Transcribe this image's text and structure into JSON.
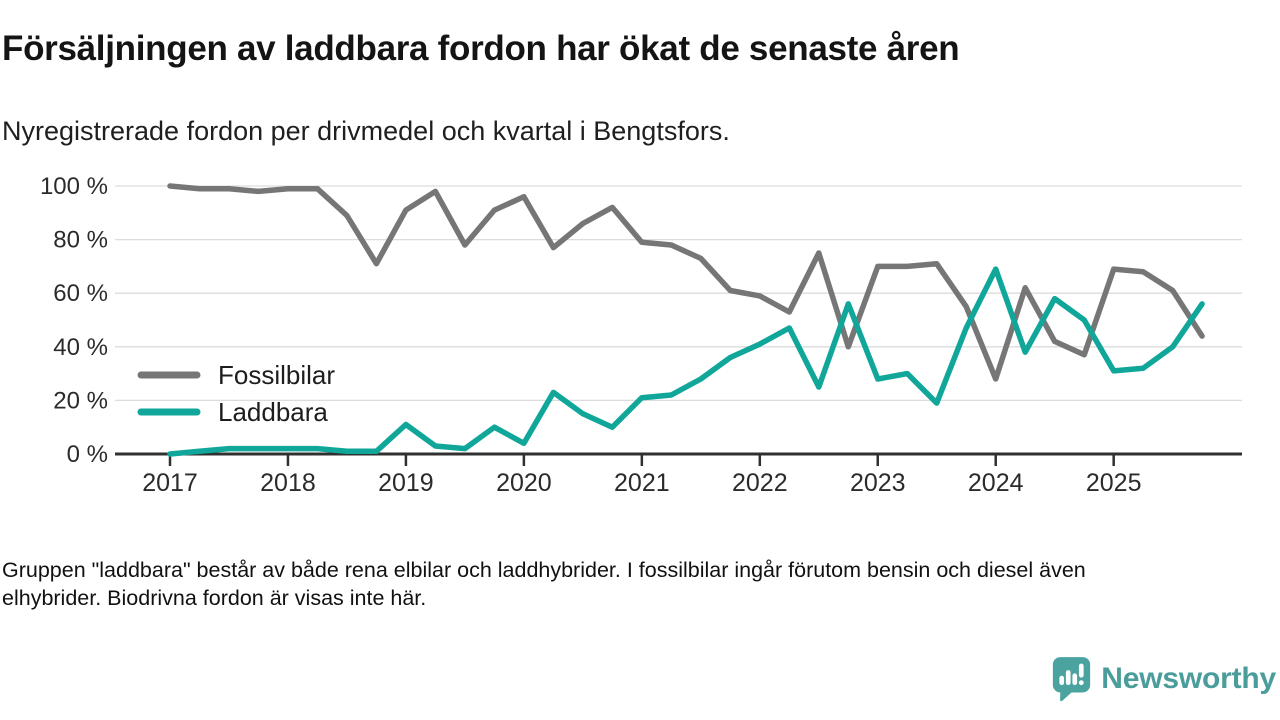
{
  "header": {
    "title": "Försäljningen av laddbara fordon har ökat de senaste åren",
    "subtitle": "Nyregistrerade fordon per drivmedel och kvartal i Bengtsfors."
  },
  "chart_data": {
    "type": "line",
    "title": "Nyregistrerade fordon per drivmedel och kvartal i Bengtsfors",
    "xlabel": "",
    "ylabel": "",
    "ylim": [
      0,
      100
    ],
    "grid": "horizontal",
    "legend_position": "inside-left",
    "x_tick_labels": [
      "2017",
      "2018",
      "2019",
      "2020",
      "2021",
      "2022",
      "2023",
      "2024",
      "2025"
    ],
    "y_tick_values": [
      0,
      20,
      40,
      60,
      80,
      100
    ],
    "y_tick_labels": [
      "0 %",
      "20 %",
      "40 %",
      "60 %",
      "80 %",
      "100 %"
    ],
    "categories": [
      "2017 Q1",
      "2017 Q2",
      "2017 Q3",
      "2017 Q4",
      "2018 Q1",
      "2018 Q2",
      "2018 Q3",
      "2018 Q4",
      "2019 Q1",
      "2019 Q2",
      "2019 Q3",
      "2019 Q4",
      "2020 Q1",
      "2020 Q2",
      "2020 Q3",
      "2020 Q4",
      "2021 Q1",
      "2021 Q2",
      "2021 Q3",
      "2021 Q4",
      "2022 Q1",
      "2022 Q2",
      "2022 Q3",
      "2022 Q4",
      "2023 Q1",
      "2023 Q2",
      "2023 Q3",
      "2023 Q4",
      "2024 Q1",
      "2024 Q2",
      "2024 Q3",
      "2024 Q4",
      "2025 Q1",
      "2025 Q2",
      "2025 Q3",
      "2025 Q4"
    ],
    "series": [
      {
        "name": "Fossilbilar",
        "color": "#767676",
        "values": [
          100,
          99,
          99,
          98,
          99,
          99,
          89,
          71,
          91,
          98,
          78,
          91,
          96,
          77,
          86,
          92,
          79,
          78,
          73,
          61,
          59,
          53,
          75,
          40,
          70,
          70,
          71,
          55,
          28,
          62,
          42,
          37,
          69,
          68,
          61,
          44
        ]
      },
      {
        "name": "Laddbara",
        "color": "#10a79a",
        "values": [
          0,
          1,
          2,
          2,
          2,
          2,
          1,
          1,
          11,
          3,
          2,
          10,
          4,
          23,
          15,
          10,
          21,
          22,
          28,
          36,
          41,
          47,
          25,
          56,
          28,
          30,
          19,
          47,
          69,
          38,
          58,
          50,
          31,
          32,
          40,
          56
        ]
      }
    ]
  },
  "footer": {
    "lines": [
      "Gruppen \"laddbara\" består av både rena elbilar och laddhybrider. I fossilbilar ingår förutom bensin och diesel även",
      "elhybrider. Biodrivna fordon är visas inte här."
    ]
  },
  "brand": {
    "name": "Newsworthy",
    "color": "#4a9d9a",
    "icon_color": "#4ba3a0"
  }
}
